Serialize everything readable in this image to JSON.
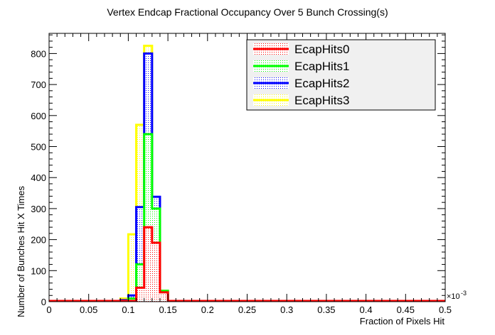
{
  "chart_data": {
    "type": "histogram",
    "title": "Vertex Endcap Fractional Occupancy Over 5 Bunch Crossing(s)",
    "xlabel": "Fraction of Pixels Hit",
    "ylabel": "Number of Bunches Hit X Times",
    "x_exponent": "×10",
    "x_exponent_power": "-3",
    "xlim": [
      0,
      0.5
    ],
    "ylim": [
      0,
      865
    ],
    "bin_edges": [
      0.09,
      0.1,
      0.11,
      0.12,
      0.13,
      0.14,
      0.15
    ],
    "x_ticks": [
      {
        "value": 0,
        "label": "0"
      },
      {
        "value": 0.05,
        "label": "0.05"
      },
      {
        "value": 0.1,
        "label": "0.1"
      },
      {
        "value": 0.15,
        "label": "0.15"
      },
      {
        "value": 0.2,
        "label": "0.2"
      },
      {
        "value": 0.25,
        "label": "0.25"
      },
      {
        "value": 0.3,
        "label": "0.3"
      },
      {
        "value": 0.35,
        "label": "0.35"
      },
      {
        "value": 0.4,
        "label": "0.4"
      },
      {
        "value": 0.45,
        "label": "0.45"
      },
      {
        "value": 0.5,
        "label": "0.5"
      }
    ],
    "y_ticks": [
      0,
      100,
      200,
      300,
      400,
      500,
      600,
      700,
      800
    ],
    "legend_position": "top-right",
    "series": [
      {
        "name": "EcapHits0",
        "color": "#ff0000",
        "values": [
          0,
          2,
          45,
          240,
          190,
          30
        ]
      },
      {
        "name": "EcapHits1",
        "color": "#00ff00",
        "values": [
          0,
          10,
          120,
          540,
          300,
          35
        ]
      },
      {
        "name": "EcapHits2",
        "color": "#0000ff",
        "values": [
          5,
          20,
          305,
          800,
          338,
          32
        ]
      },
      {
        "name": "EcapHits3",
        "color": "#ffff00",
        "values": [
          10,
          217,
          570,
          825,
          300,
          35
        ]
      }
    ]
  }
}
